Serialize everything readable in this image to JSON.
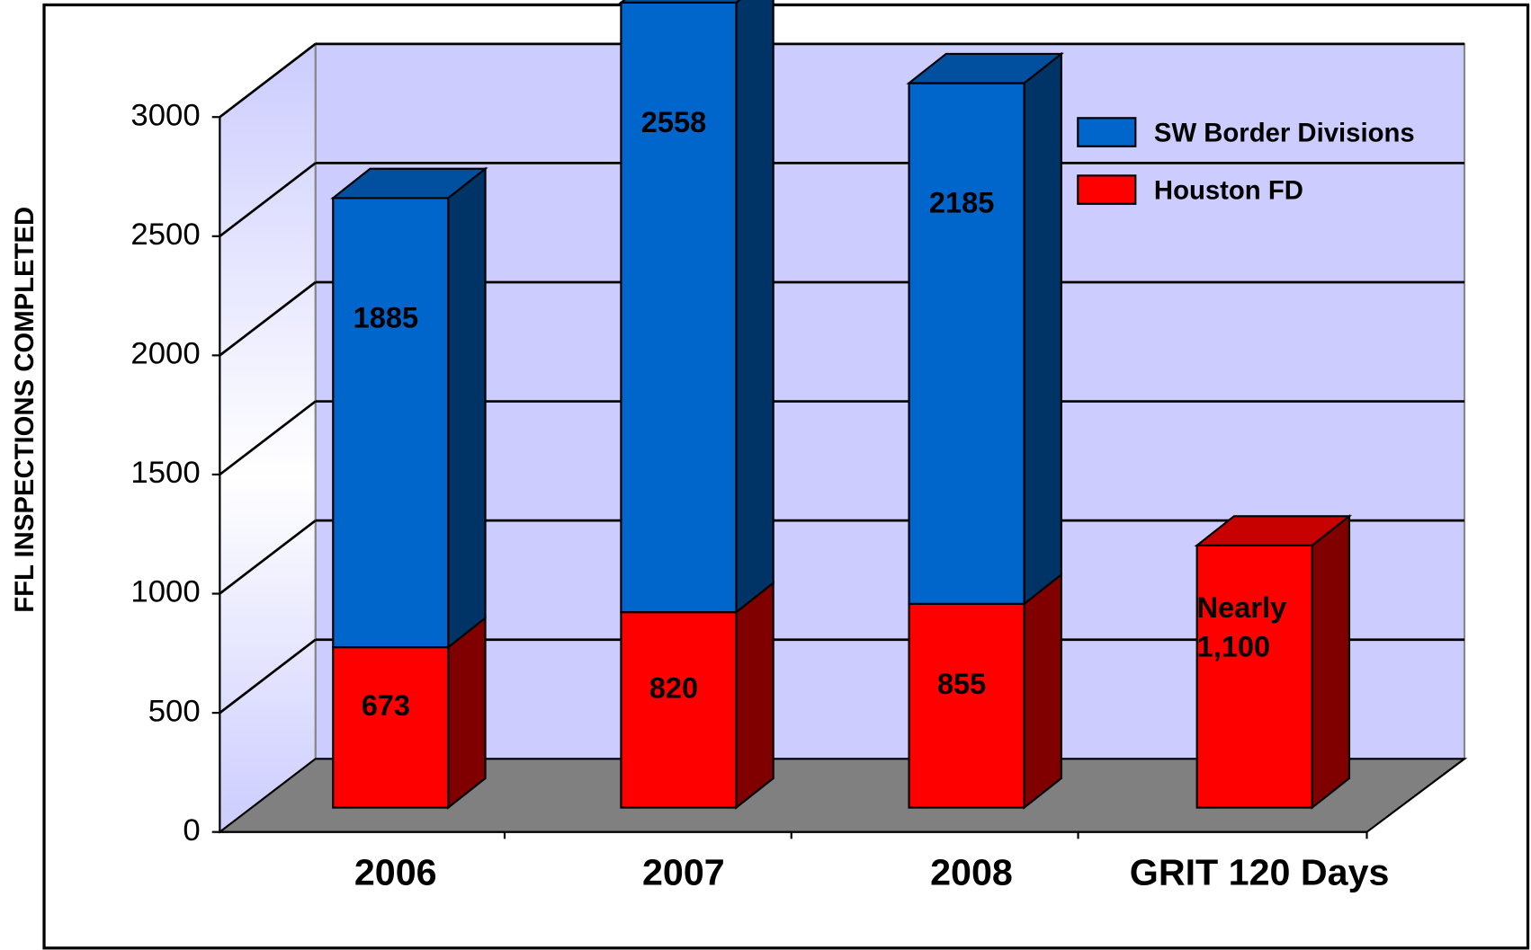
{
  "chart_data": {
    "type": "bar3d_stacked",
    "y_axis_label": "FFL INSPECTIONS COMPLETED",
    "categories": [
      "2006",
      "2007",
      "2008",
      "GRIT 120 Days"
    ],
    "series": [
      {
        "name": "SW Border Divisions",
        "color": "#0066cc",
        "values": [
          1885,
          2558,
          2185,
          null
        ]
      },
      {
        "name": "Houston FD",
        "color": "#ff0000",
        "values": [
          673,
          820,
          855,
          1100
        ],
        "value_labels": [
          "673",
          "820",
          "855",
          "Nearly 1,100"
        ]
      }
    ],
    "ylim": [
      0,
      3000
    ],
    "yticks": [
      0,
      500,
      1000,
      1500,
      2000,
      2500,
      3000
    ],
    "grid": true,
    "legend": "upper right"
  }
}
